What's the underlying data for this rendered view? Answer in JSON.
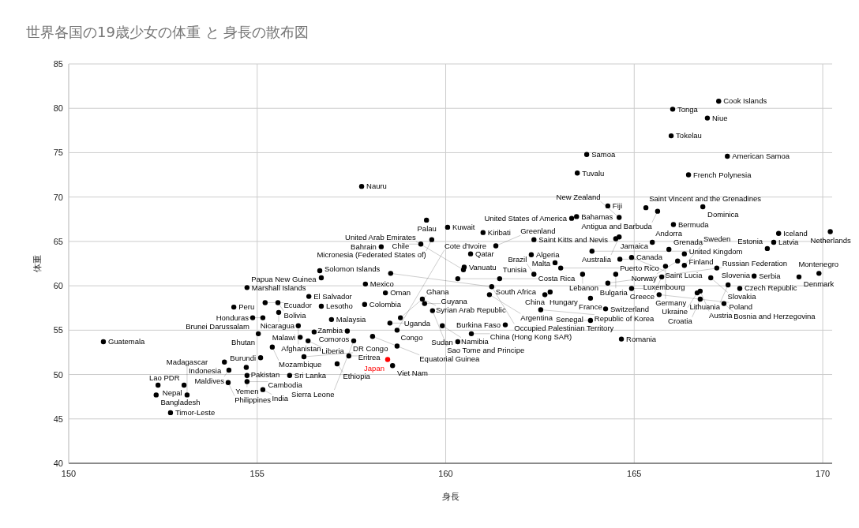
{
  "chart_data": {
    "type": "scatter",
    "title": "世界各国の19歳少女の体重 と 身長の散布図",
    "xlabel": "身長",
    "ylabel": "体重",
    "xlim": [
      150,
      170.25
    ],
    "ylim": [
      40,
      85
    ],
    "xticks": [
      150,
      155,
      160,
      165,
      170
    ],
    "yticks": [
      40,
      45,
      50,
      55,
      60,
      65,
      70,
      75,
      80,
      85
    ],
    "grid": true,
    "marker": "circle",
    "series": [
      {
        "color": "#000000",
        "x": [
          167.24,
          166.02,
          166.94,
          165.98,
          167.47,
          163.74,
          163.49,
          166.44,
          157.77,
          165.31,
          164.3,
          166.82,
          165.62,
          163.47,
          164.6,
          163.34,
          166.04,
          159.49,
          160.05,
          160.99,
          159.63,
          162.34,
          164.51,
          164.6,
          165.48,
          168.83,
          170.2,
          154.73,
          156.66,
          156.7,
          156.37,
          154.38,
          155.21,
          155.55,
          155.57,
          154.88,
          155.15,
          156.09,
          155.03,
          156.14,
          155.4,
          155.09,
          156.24,
          154.13,
          154.25,
          154.71,
          154.73,
          155.86,
          154.23,
          154.73,
          155.15,
          152.37,
          153.06,
          152.32,
          153.14,
          152.7,
          150.92,
          157.87,
          158.4,
          159.38,
          156.7,
          157.85,
          156.97,
          159.65,
          156.51,
          157.39,
          158.06,
          156.35,
          157.56,
          158.71,
          157.43,
          157.12,
          158.59,
          158.52,
          158.71,
          158.8,
          160.49,
          158.54,
          160.47,
          160.32,
          161.43,
          161.22,
          159.44,
          161.16,
          162.63,
          161.58,
          159.91,
          160.68,
          160.32,
          160.66,
          162.27,
          161.33,
          159.34,
          158.29,
          162.34,
          163.05,
          162.9,
          163.63,
          164.51,
          164.3,
          162.77,
          162.52,
          164.24,
          163.84,
          164.93,
          163.84,
          164.66,
          163.88,
          164.62,
          164.93,
          165.92,
          166.33,
          166.15,
          165.83,
          166.33,
          167.19,
          165.73,
          168.53,
          168.7,
          167.03,
          168.18,
          169.37,
          169.9,
          167.8,
          167.49,
          165.66,
          166.67,
          166.75,
          166.75,
          167.38
        ],
        "values": [
          80.8,
          79.9,
          78.9,
          76.9,
          74.6,
          74.8,
          72.7,
          72.5,
          71.2,
          68.8,
          69.0,
          68.9,
          68.4,
          67.8,
          67.7,
          67.6,
          66.9,
          67.4,
          66.6,
          66.0,
          65.2,
          65.2,
          65.3,
          65.5,
          64.9,
          65.9,
          66.1,
          59.8,
          61.7,
          60.9,
          58.8,
          57.6,
          58.1,
          58.1,
          57.0,
          56.4,
          56.4,
          55.5,
          54.6,
          54.2,
          53.1,
          51.9,
          52.0,
          51.4,
          50.5,
          50.8,
          49.9,
          49.9,
          49.1,
          49.2,
          48.3,
          48.8,
          48.8,
          47.7,
          47.7,
          45.7,
          53.7,
          60.2,
          59.2,
          58.5,
          57.7,
          57.9,
          56.2,
          57.2,
          54.8,
          54.9,
          54.3,
          53.8,
          53.8,
          53.2,
          52.1,
          51.2,
          51.0,
          55.8,
          55.0,
          56.4,
          62.1,
          61.4,
          61.8,
          60.8,
          60.8,
          59.9,
          58.0,
          59.0,
          59.0,
          55.6,
          55.5,
          54.6,
          53.7,
          63.6,
          63.5,
          64.5,
          64.7,
          64.4,
          61.3,
          62.0,
          62.6,
          61.3,
          61.3,
          60.3,
          59.3,
          57.3,
          57.4,
          58.6,
          59.7,
          56.1,
          54.0,
          63.9,
          63.0,
          63.2,
          64.1,
          63.6,
          62.8,
          62.2,
          62.3,
          62.0,
          61.0,
          64.2,
          64.9,
          60.9,
          61.1,
          61.0,
          61.4,
          59.7,
          60.1,
          59.0,
          59.2,
          59.4,
          58.5,
          58.0
        ],
        "value_labels": [
          "Cook Islands",
          "Tonga",
          "Niue",
          "Tokelau",
          "American Samoa",
          "Samoa",
          "Tuvalu",
          "French Polynesia",
          "Nauru",
          "Saint Vincent and the Grenadines",
          "Fiji",
          "Dominica",
          "Antigua and Barbuda",
          "Bahamas",
          "New Zealand",
          "United States of America",
          "Bermuda",
          "Palau",
          "Kuwait",
          "Kiribati",
          "Micronesia (Federated States of)",
          "Saint Kitts and Nevis",
          "Jamaica",
          "Australia",
          "Andorra",
          "Iceland",
          "Netherlands",
          "Marshall Islands",
          "Papua New Guinea",
          "Solomon Islands",
          "El Salvador",
          "Peru",
          "Ecuador",
          "Bolivia",
          "Nicaragua",
          "Brunei Darussalam",
          "Honduras",
          "Afghanistan",
          "Bhutan",
          "Malawi",
          "Mozambique",
          "Burundi",
          "DR Congo",
          "Indonesia",
          "Maldives",
          "Pakistan",
          "Yemen",
          "Sri Lanka",
          "Philippines",
          "Cambodia",
          "India",
          "Nepal",
          "Lao PDR",
          "Bangladesh",
          "Madagascar",
          "Timor-Leste",
          "Guatemala",
          "Mexico",
          "Oman",
          "Syrian Arab Republic",
          "Lesotho",
          "Colombia",
          "Malaysia",
          "Sao Tome and Principe",
          "Comoros",
          "Zambia",
          "Equatorial Guinea",
          "Liberia",
          "Sierra Leone",
          "Congo",
          "Eritrea",
          "Ethiopia",
          "Viet Nam",
          "Uganda",
          "Cote d'Ivoire",
          "Ghana",
          "Vanuatu",
          "South Africa",
          "United Arab Emirates",
          "Costa Rica",
          "Tunisia",
          "Occupied Palestinian Territory",
          "Guyana",
          "Argentina",
          "Hungary",
          "Burkina Faso",
          "Namibia",
          "China (Hong Kong SAR)",
          "Sudan",
          "Qatar",
          "Algeria",
          "Greenland",
          "Chile",
          "Bahrain",
          "Brazil",
          "Puerto Rico",
          "Malta",
          "Lebanon",
          "Bulgaria",
          "Russian Federation",
          "China",
          "Republic of Korea",
          "Switzerland",
          "France",
          "Luxembourg",
          "Senegal",
          "Romania",
          "United Kingdom",
          "Canada",
          "Saint Lucia",
          "Grenada",
          "Finland",
          "Norway",
          "Germany",
          "Sweden",
          "Slovenia",
          "Greece",
          "Estonia",
          "Latvia",
          "Slovakia",
          "Serbia",
          "Denmark",
          "Montenegro",
          "Czech Republic",
          "Lithuania",
          "Poland",
          "Ukraine",
          "Austria",
          "Croatia",
          "Bosnia and Herzegovina"
        ]
      },
      {
        "color": "#ff0000",
        "x": [
          158.46
        ],
        "values": [
          51.7
        ],
        "value_labels": [
          "Japan"
        ]
      }
    ]
  }
}
